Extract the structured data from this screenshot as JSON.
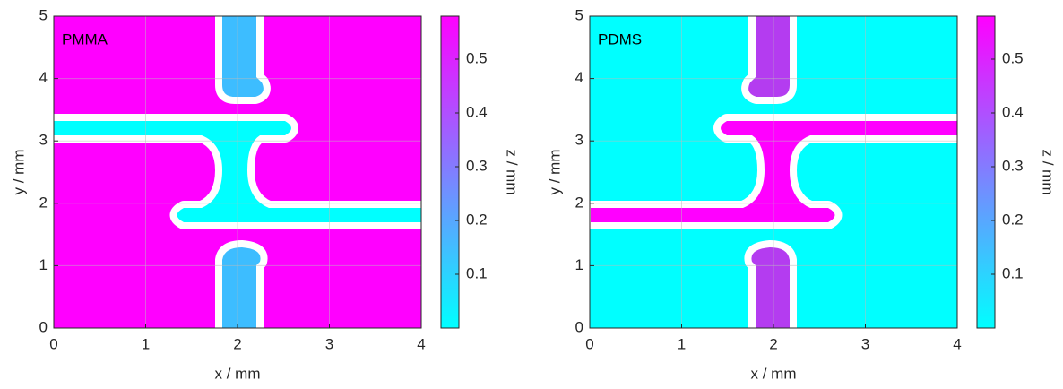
{
  "chart_data": [
    {
      "type": "image",
      "annotation": "PMMA",
      "xlabel": "x / mm",
      "ylabel": "y / mm",
      "xlim": [
        0,
        4
      ],
      "ylim": [
        0,
        5
      ],
      "xticks": [
        0,
        1,
        2,
        3,
        4
      ],
      "yticks": [
        0,
        1,
        2,
        3,
        4,
        5
      ],
      "grid": true,
      "background_color": "#ff00ff",
      "channel_color": "#00ffff",
      "pillar_color": "#3dbdff",
      "colorbar": {
        "label": "z / mm",
        "lim": [
          0,
          0.58
        ],
        "ticks": [
          0.1,
          0.2,
          0.3,
          0.4,
          0.5
        ],
        "colors": [
          "#00ffff",
          "#ff00ff"
        ]
      }
    },
    {
      "type": "image",
      "annotation": "PDMS",
      "xlabel": "x / mm",
      "ylabel": "y / mm",
      "xlim": [
        0,
        4
      ],
      "ylim": [
        0,
        5
      ],
      "xticks": [
        0,
        1,
        2,
        3,
        4
      ],
      "yticks": [
        0,
        1,
        2,
        3,
        4,
        5
      ],
      "grid": true,
      "background_color": "#00ffff",
      "channel_color": "#ff00ff",
      "pillar_color": "#b43cf0",
      "colorbar": {
        "label": "z / mm",
        "lim": [
          0,
          0.58
        ],
        "ticks": [
          0.1,
          0.2,
          0.3,
          0.4,
          0.5
        ],
        "colors": [
          "#00ffff",
          "#ff00ff"
        ]
      }
    }
  ]
}
